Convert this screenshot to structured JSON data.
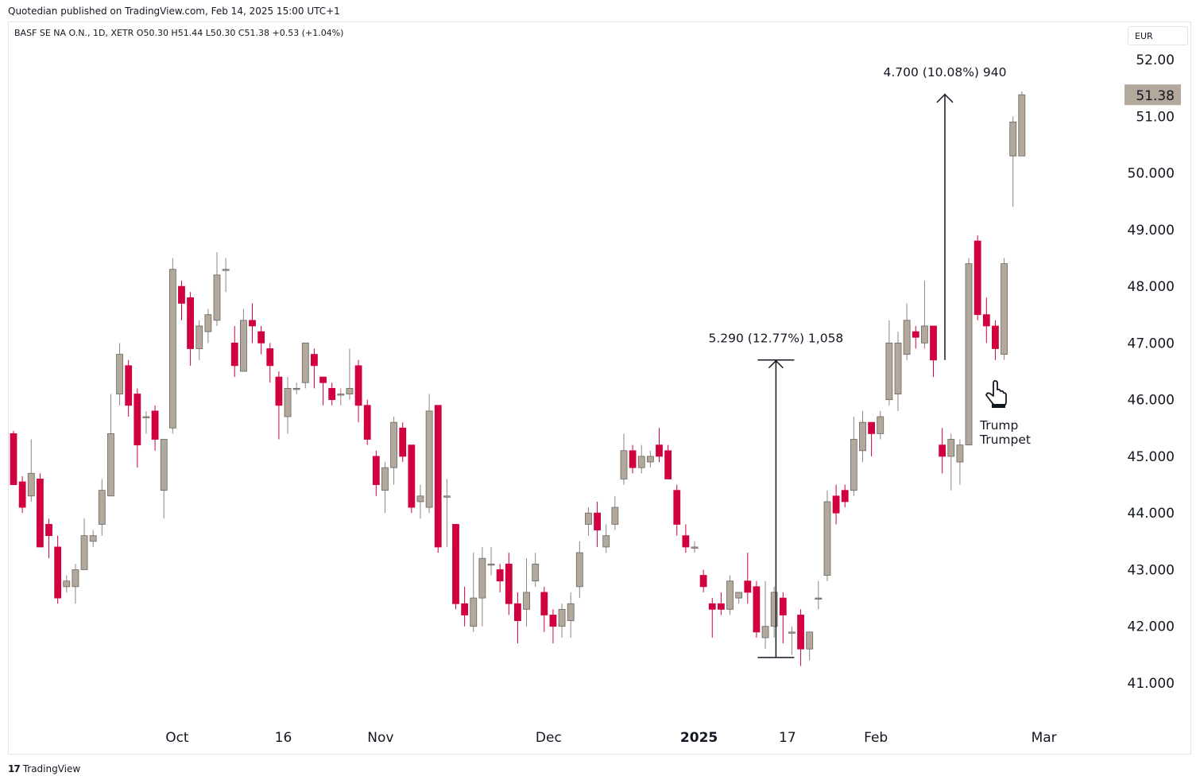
{
  "header": {
    "publish_line": "Quotedian published on TradingView.com, Feb 14, 2025 15:00 UTC+1"
  },
  "legend": {
    "symbol_line": "BASF SE NA O.N., 1D, XETR  O50.30  H51.44  L50.30  C51.38  +0.53 (+1.04%)"
  },
  "currency": "EUR",
  "footer": {
    "logo": "17",
    "brand": "TradingView"
  },
  "colors": {
    "up": "#b2a89c",
    "down": "#d1003f",
    "wick_up": "#8c8480",
    "wick_down": "#d1003f",
    "last_price_bg": "#b2a89c"
  },
  "chart_data": {
    "type": "candlestick",
    "y_axis": {
      "min": 41,
      "max": 52,
      "ticks": [
        {
          "v": 52,
          "label": "52.00"
        },
        {
          "v": 51,
          "label": "51.00"
        },
        {
          "v": 50,
          "label": "50.000"
        },
        {
          "v": 49,
          "label": "49.000"
        },
        {
          "v": 48,
          "label": "48.000"
        },
        {
          "v": 47,
          "label": "47.000"
        },
        {
          "v": 46,
          "label": "46.000"
        },
        {
          "v": 45,
          "label": "45.000"
        },
        {
          "v": 44,
          "label": "44.000"
        },
        {
          "v": 43,
          "label": "43.000"
        },
        {
          "v": 42,
          "label": "42.000"
        },
        {
          "v": 41,
          "label": "41.000"
        }
      ]
    },
    "x_ticks": [
      {
        "i": 18.5,
        "label": "Oct"
      },
      {
        "i": 30.5,
        "label": "16"
      },
      {
        "i": 41.5,
        "label": "Nov"
      },
      {
        "i": 60.5,
        "label": "Dec"
      },
      {
        "i": 77.5,
        "label": "2025"
      },
      {
        "i": 87.5,
        "label": "17"
      },
      {
        "i": 97.5,
        "label": "Feb"
      },
      {
        "i": 116.5,
        "label": "Mar"
      }
    ],
    "last_price": {
      "value": 51.38,
      "label": "51.38"
    },
    "candles": [
      [
        45.4,
        44.5,
        45.45,
        44.5
      ],
      [
        44.55,
        44.1,
        44.65,
        44.0
      ],
      [
        44.3,
        44.7,
        45.3,
        44.2
      ],
      [
        44.6,
        43.4,
        44.7,
        43.4
      ],
      [
        43.8,
        43.6,
        43.9,
        43.2
      ],
      [
        43.4,
        42.5,
        43.6,
        42.4
      ],
      [
        42.7,
        42.8,
        42.9,
        42.6
      ],
      [
        42.7,
        43.0,
        43.1,
        42.4
      ],
      [
        43.0,
        43.6,
        43.9,
        43.0
      ],
      [
        43.5,
        43.6,
        43.7,
        43.4
      ],
      [
        43.8,
        44.4,
        44.6,
        43.6
      ],
      [
        44.3,
        45.4,
        46.1,
        44.3
      ],
      [
        46.1,
        46.8,
        47.0,
        45.9
      ],
      [
        46.6,
        45.9,
        46.7,
        45.7
      ],
      [
        46.1,
        45.2,
        46.2,
        44.8
      ],
      [
        45.7,
        45.7,
        45.8,
        45.4
      ],
      [
        45.8,
        45.3,
        45.9,
        45.1
      ],
      [
        44.4,
        45.3,
        45.3,
        43.9
      ],
      [
        45.5,
        48.3,
        48.5,
        45.4
      ],
      [
        48.0,
        47.7,
        48.1,
        47.4
      ],
      [
        47.8,
        46.9,
        47.9,
        46.6
      ],
      [
        46.9,
        47.3,
        47.4,
        46.7
      ],
      [
        47.2,
        47.5,
        47.6,
        47.0
      ],
      [
        47.4,
        48.2,
        48.6,
        47.3
      ],
      [
        48.3,
        48.3,
        48.5,
        47.9
      ],
      [
        47.0,
        46.6,
        47.3,
        46.4
      ],
      [
        46.5,
        47.4,
        47.6,
        46.5
      ],
      [
        47.4,
        47.3,
        47.7,
        47.0
      ],
      [
        47.2,
        47.0,
        47.3,
        46.8
      ],
      [
        46.9,
        46.6,
        47.0,
        46.3
      ],
      [
        46.4,
        45.9,
        46.5,
        45.3
      ],
      [
        45.7,
        46.2,
        46.4,
        45.4
      ],
      [
        46.2,
        46.2,
        46.3,
        46.1
      ],
      [
        46.3,
        47.0,
        47.0,
        46.2
      ],
      [
        46.8,
        46.6,
        46.9,
        46.2
      ],
      [
        46.4,
        46.3,
        46.4,
        45.9
      ],
      [
        46.2,
        46.0,
        46.3,
        45.9
      ],
      [
        46.1,
        46.1,
        46.2,
        45.9
      ],
      [
        46.1,
        46.2,
        46.9,
        46.0
      ],
      [
        46.6,
        45.9,
        46.7,
        45.6
      ],
      [
        45.9,
        45.3,
        46.0,
        45.2
      ],
      [
        45.0,
        44.5,
        45.1,
        44.3
      ],
      [
        44.4,
        44.8,
        44.9,
        44.0
      ],
      [
        44.8,
        45.6,
        45.7,
        44.5
      ],
      [
        45.5,
        45.0,
        45.6,
        44.9
      ],
      [
        45.2,
        44.1,
        45.2,
        44.0
      ],
      [
        44.2,
        44.3,
        44.5,
        43.9
      ],
      [
        44.1,
        45.8,
        46.1,
        44.0
      ],
      [
        45.9,
        43.4,
        45.9,
        43.3
      ],
      [
        44.3,
        44.3,
        44.6,
        43.4
      ],
      [
        43.8,
        42.4,
        43.8,
        42.3
      ],
      [
        42.4,
        42.2,
        42.7,
        42.0
      ],
      [
        42.0,
        42.5,
        43.3,
        41.9
      ],
      [
        42.5,
        43.2,
        43.4,
        42.0
      ],
      [
        43.1,
        43.1,
        43.4,
        42.9
      ],
      [
        43.0,
        42.8,
        43.1,
        42.6
      ],
      [
        43.1,
        42.4,
        43.3,
        42.2
      ],
      [
        42.4,
        42.1,
        42.6,
        41.7
      ],
      [
        42.3,
        42.6,
        43.2,
        42.0
      ],
      [
        42.8,
        43.1,
        43.3,
        42.7
      ],
      [
        42.6,
        42.2,
        42.7,
        41.9
      ],
      [
        42.2,
        42.0,
        42.3,
        41.7
      ],
      [
        42.0,
        42.3,
        42.4,
        41.8
      ],
      [
        42.1,
        42.4,
        42.6,
        41.8
      ],
      [
        42.7,
        43.3,
        43.5,
        42.5
      ],
      [
        43.8,
        44.0,
        44.1,
        43.6
      ],
      [
        44.0,
        43.7,
        44.2,
        43.4
      ],
      [
        43.4,
        43.6,
        43.8,
        43.3
      ],
      [
        43.8,
        44.1,
        44.3,
        43.7
      ],
      [
        44.6,
        45.1,
        45.4,
        44.5
      ],
      [
        45.1,
        44.8,
        45.2,
        44.7
      ],
      [
        44.8,
        45.0,
        45.2,
        44.7
      ],
      [
        44.9,
        45.0,
        45.1,
        44.8
      ],
      [
        45.2,
        45.0,
        45.5,
        44.9
      ],
      [
        45.1,
        44.6,
        45.2,
        44.6
      ],
      [
        44.4,
        43.8,
        44.5,
        43.6
      ],
      [
        43.6,
        43.4,
        43.8,
        43.3
      ],
      [
        43.4,
        43.4,
        43.5,
        43.3
      ],
      [
        42.9,
        42.7,
        43.0,
        42.6
      ],
      [
        42.4,
        42.3,
        42.5,
        41.8
      ],
      [
        42.4,
        42.3,
        42.6,
        42.2
      ],
      [
        42.3,
        42.8,
        42.9,
        42.2
      ],
      [
        42.5,
        42.6,
        42.6,
        42.4
      ],
      [
        42.8,
        42.6,
        43.3,
        42.4
      ],
      [
        42.7,
        41.9,
        42.8,
        41.8
      ],
      [
        41.8,
        42.0,
        42.8,
        41.6
      ],
      [
        42.0,
        42.6,
        42.7,
        41.8
      ],
      [
        42.5,
        42.2,
        42.6,
        41.7
      ],
      [
        41.9,
        41.9,
        42.0,
        41.5
      ],
      [
        42.2,
        41.6,
        42.3,
        41.3
      ],
      [
        41.6,
        41.9,
        41.9,
        41.4
      ],
      [
        42.5,
        42.5,
        42.8,
        42.3
      ],
      [
        42.9,
        44.2,
        44.4,
        42.8
      ],
      [
        44.3,
        44.0,
        44.5,
        43.8
      ],
      [
        44.4,
        44.2,
        44.5,
        44.1
      ],
      [
        44.4,
        45.3,
        45.7,
        44.3
      ],
      [
        45.1,
        45.6,
        45.8,
        44.9
      ],
      [
        45.6,
        45.4,
        45.6,
        45.0
      ],
      [
        45.4,
        45.7,
        45.8,
        45.3
      ],
      [
        46.0,
        47.0,
        47.4,
        45.9
      ],
      [
        46.1,
        47.0,
        47.2,
        45.8
      ],
      [
        46.8,
        47.4,
        47.7,
        46.7
      ],
      [
        47.2,
        47.1,
        47.3,
        46.9
      ],
      [
        47.0,
        47.3,
        48.1,
        46.9
      ],
      [
        47.3,
        46.7,
        47.3,
        46.4
      ],
      [
        45.2,
        45.0,
        45.5,
        44.7
      ],
      [
        45.0,
        45.3,
        45.4,
        44.4
      ],
      [
        44.9,
        45.2,
        45.3,
        44.5
      ],
      [
        45.2,
        48.4,
        48.5,
        45.2
      ],
      [
        48.8,
        47.5,
        48.9,
        47.4
      ],
      [
        47.5,
        47.3,
        47.8,
        47.0
      ],
      [
        47.3,
        46.9,
        47.4,
        46.7
      ],
      [
        46.8,
        48.4,
        48.5,
        46.7
      ],
      [
        50.3,
        50.9,
        51.0,
        49.4
      ],
      [
        50.3,
        51.38,
        51.44,
        50.3
      ]
    ],
    "slots": [
      0,
      1,
      2,
      3,
      4,
      5,
      6,
      7,
      8,
      9,
      10,
      11,
      12,
      13,
      14,
      15,
      16,
      17,
      18,
      19,
      20,
      21,
      22,
      23,
      24,
      25,
      26,
      27,
      28,
      29,
      30,
      31,
      32,
      33,
      34,
      35,
      36,
      37,
      38,
      39,
      40,
      41,
      42,
      43,
      44,
      45,
      46,
      47,
      48,
      49,
      50,
      51,
      52,
      53,
      54,
      55,
      56,
      57,
      58,
      59,
      60,
      61,
      62,
      63,
      64,
      65,
      66,
      67,
      68,
      69,
      70,
      71,
      72,
      73,
      74,
      75,
      76,
      77,
      78,
      79,
      80,
      81,
      82,
      83,
      84,
      85,
      86,
      87,
      88,
      89,
      90,
      91,
      92,
      93,
      94,
      95,
      96,
      97,
      98,
      99,
      100,
      101,
      102,
      103,
      104,
      105,
      106,
      107,
      108,
      109,
      110,
      111,
      112,
      113,
      114,
      115,
      116
    ],
    "annotations": [
      {
        "text": "5.290 (12.77%) 1,058",
        "from": 41.45,
        "to": 46.7,
        "slot": 86.2
      },
      {
        "text": "4.700 (10.08%) 940",
        "from": 46.7,
        "to": 51.4,
        "slot": 105.3
      },
      {
        "text": "Trump",
        "icon": "pointing-hand-icon"
      },
      {
        "text": "Trumpet"
      }
    ]
  }
}
